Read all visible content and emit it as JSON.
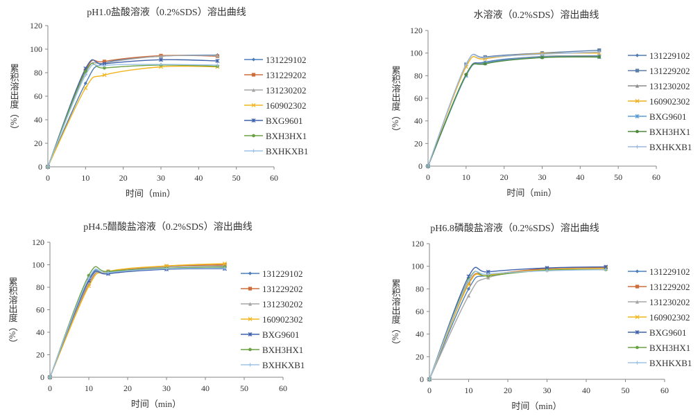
{
  "chart_data": [
    {
      "type": "line",
      "title": "pH1.0盐酸溶液（0.2%SDS）溶出曲线",
      "xlabel": "时间（min）",
      "ylabel": "累积溶出度（%）",
      "xlim": [
        0,
        60
      ],
      "ylim": [
        0,
        120
      ],
      "xticks": [
        0,
        10,
        20,
        30,
        40,
        50,
        60
      ],
      "yticks": [
        0,
        20,
        40,
        60,
        80,
        100,
        120
      ],
      "grid": false,
      "legend": "right",
      "smooth": true,
      "x": [
        0,
        10,
        15,
        30,
        45
      ],
      "series": [
        {
          "name": "131229102",
          "values": [
            0,
            71,
            88,
            94,
            95
          ],
          "color": "#4a7ebb",
          "marker": "diamond"
        },
        {
          "name": "131229202",
          "values": [
            0,
            82,
            89.5,
            94.5,
            94
          ],
          "color": "#cf6d3a",
          "marker": "square"
        },
        {
          "name": "131230202",
          "values": [
            0,
            80,
            88,
            94,
            94.5
          ],
          "color": "#a5a5a5",
          "marker": "triangle"
        },
        {
          "name": "160902302",
          "values": [
            0,
            67,
            78,
            85,
            85
          ],
          "color": "#f2b51a",
          "marker": "x"
        },
        {
          "name": "BXG9601",
          "values": [
            0,
            83.5,
            87.5,
            91,
            90
          ],
          "color": "#3f62ad",
          "marker": "star"
        },
        {
          "name": "BXH3HX1",
          "values": [
            0,
            81,
            84,
            86.5,
            85.5
          ],
          "color": "#6aa142",
          "marker": "circle"
        },
        {
          "name": "BXHKXB1",
          "values": [
            0,
            78,
            86,
            87,
            86.5
          ],
          "color": "#9dc3e6",
          "marker": "plus"
        }
      ]
    },
    {
      "type": "line",
      "title": "水溶液（0.2%SDS）溶出曲线",
      "xlabel": "时间（min）",
      "ylabel": "累积溶出度（%）",
      "xlim": [
        0,
        60
      ],
      "ylim": [
        0,
        120
      ],
      "xticks": [
        0,
        10,
        20,
        30,
        40,
        50,
        60
      ],
      "yticks": [
        0,
        20,
        40,
        60,
        80,
        100,
        120
      ],
      "grid": false,
      "legend": "right",
      "smooth": true,
      "x": [
        0,
        10,
        15,
        30,
        45
      ],
      "series": [
        {
          "name": "131229102",
          "values": [
            0,
            81,
            92,
            97,
            97.5
          ],
          "color": "#4f79b3",
          "marker": "diamond"
        },
        {
          "name": "131229202",
          "values": [
            0,
            90,
            96.5,
            100,
            102.5
          ],
          "color": "#5b7fa8",
          "marker": "square"
        },
        {
          "name": "131230202",
          "values": [
            0,
            81,
            91,
            97,
            97
          ],
          "color": "#8c8c8c",
          "marker": "triangle"
        },
        {
          "name": "160902302",
          "values": [
            0,
            88,
            95,
            99.5,
            100
          ],
          "color": "#eeae1c",
          "marker": "x"
        },
        {
          "name": "BXG9601",
          "values": [
            0,
            80,
            91,
            96.5,
            96.5
          ],
          "color": "#5b9bd5",
          "marker": "star"
        },
        {
          "name": "BXH3HX1",
          "values": [
            0,
            81,
            90.5,
            96,
            96.5
          ],
          "color": "#4e8a3a",
          "marker": "circle"
        },
        {
          "name": "BXHKXB1",
          "values": [
            0,
            90,
            96,
            99,
            101
          ],
          "color": "#9db8df",
          "marker": "plus"
        }
      ]
    },
    {
      "type": "line",
      "title": "pH4.5醋酸盐溶液（0.2%SDS）溶出曲线",
      "xlabel": "时间（min）",
      "ylabel": "累积溶出度（%）",
      "xlim": [
        0,
        60
      ],
      "ylim": [
        0,
        120
      ],
      "xticks": [
        0,
        10,
        20,
        30,
        40,
        50,
        60
      ],
      "yticks": [
        0,
        20,
        40,
        60,
        80,
        100,
        120
      ],
      "grid": false,
      "legend": "right",
      "smooth": true,
      "x": [
        0,
        10,
        15,
        30,
        45
      ],
      "series": [
        {
          "name": "131229102",
          "values": [
            0,
            87,
            93,
            96,
            97
          ],
          "color": "#4a7ebb",
          "marker": "diamond"
        },
        {
          "name": "131229202",
          "values": [
            0,
            83,
            94,
            98.5,
            100
          ],
          "color": "#cf6d3a",
          "marker": "square"
        },
        {
          "name": "131230202",
          "values": [
            0,
            84,
            93,
            98,
            99
          ],
          "color": "#a5a5a5",
          "marker": "triangle"
        },
        {
          "name": "160902302",
          "values": [
            0,
            81,
            94,
            99,
            101
          ],
          "color": "#f2b51a",
          "marker": "x"
        },
        {
          "name": "BXG9601",
          "values": [
            0,
            86,
            92,
            96,
            96.5
          ],
          "color": "#3f62ad",
          "marker": "star"
        },
        {
          "name": "BXH3HX1",
          "values": [
            0,
            90.5,
            94,
            97,
            98
          ],
          "color": "#6aa142",
          "marker": "circle"
        },
        {
          "name": "BXHKXB1",
          "values": [
            0,
            88,
            93,
            96.5,
            97
          ],
          "color": "#9dc3e6",
          "marker": "plus"
        }
      ]
    },
    {
      "type": "line",
      "title": "pH6.8磷酸盐溶液（0.2%SDS）溶出曲线",
      "xlabel": "时间（min）",
      "ylabel": "累积溶出度（%）",
      "xlim": [
        0,
        60
      ],
      "ylim": [
        0,
        120
      ],
      "xticks": [
        0,
        10,
        20,
        30,
        40,
        50,
        60
      ],
      "yticks": [
        0,
        20,
        40,
        60,
        80,
        100,
        120
      ],
      "grid": false,
      "legend": "right",
      "smooth": true,
      "x": [
        0,
        10,
        15,
        30,
        45
      ],
      "series": [
        {
          "name": "131229102",
          "values": [
            0,
            80,
            92,
            97,
            97
          ],
          "color": "#4a7ebb",
          "marker": "diamond"
        },
        {
          "name": "131229202",
          "values": [
            0,
            85,
            92,
            98,
            99
          ],
          "color": "#cf6d3a",
          "marker": "square"
        },
        {
          "name": "131230202",
          "values": [
            0,
            74,
            90,
            97,
            98
          ],
          "color": "#a5a5a5",
          "marker": "triangle"
        },
        {
          "name": "160902302",
          "values": [
            0,
            84,
            92,
            97,
            98
          ],
          "color": "#f2b51a",
          "marker": "x"
        },
        {
          "name": "BXG9601",
          "values": [
            0,
            91,
            95,
            98.5,
            99.5
          ],
          "color": "#3f62ad",
          "marker": "star"
        },
        {
          "name": "BXH3HX1",
          "values": [
            0,
            88,
            91.5,
            96.5,
            97
          ],
          "color": "#6aa142",
          "marker": "circle"
        },
        {
          "name": "BXHKXB1",
          "values": [
            0,
            87,
            93,
            96,
            97
          ],
          "color": "#9dc3e6",
          "marker": "plus"
        }
      ]
    }
  ]
}
